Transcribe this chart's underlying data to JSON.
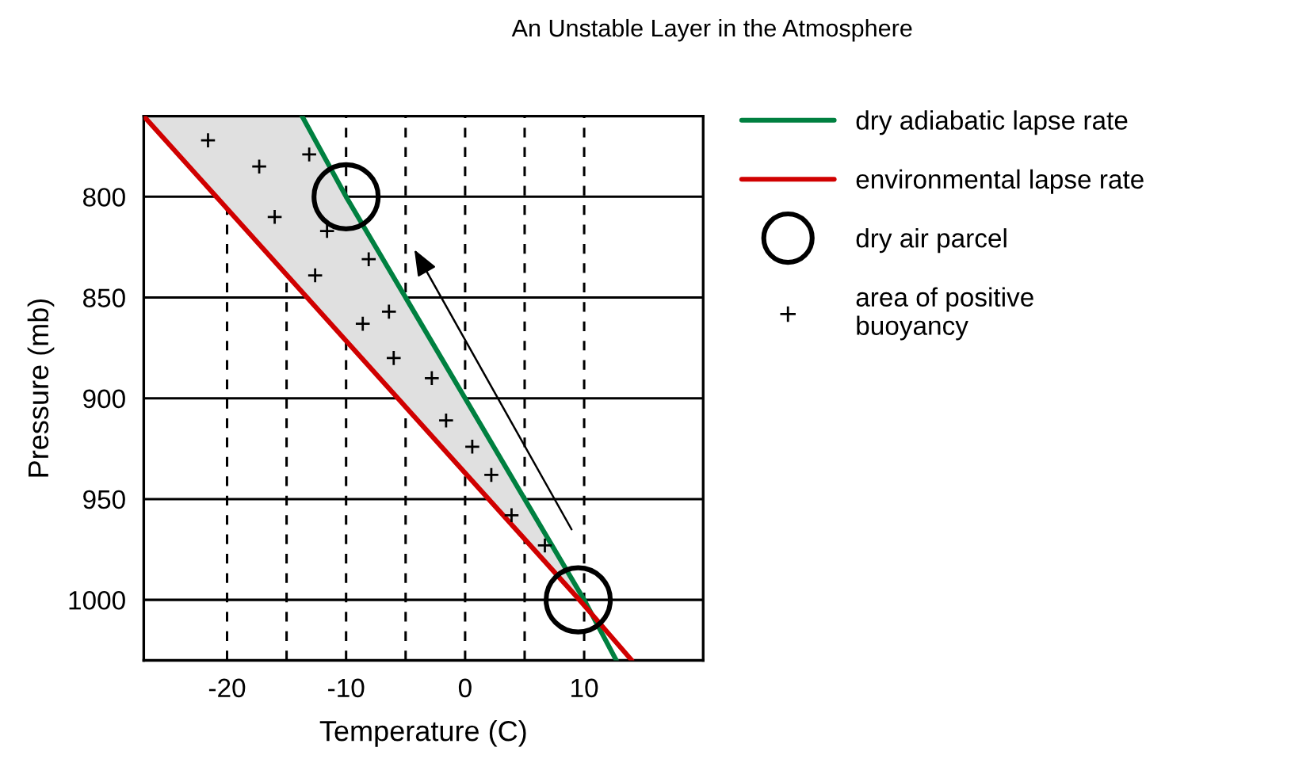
{
  "chart_data": {
    "type": "line",
    "title": "An Unstable Layer in the Atmosphere",
    "xlabel": "Temperature (C)",
    "ylabel": "Pressure (mb)",
    "xlim": [
      -27,
      20
    ],
    "ylim": [
      1030,
      760
    ],
    "xticks": [
      -20,
      {
        "value": -15,
        "label": null
      },
      -10,
      {
        "value": -5,
        "label": null
      },
      0,
      {
        "value": 5,
        "label": null
      },
      10
    ],
    "yticks": [
      800,
      850,
      900,
      950,
      1000
    ],
    "grid": true,
    "legend": "right",
    "series": [
      {
        "name": "dry adiabatic lapse rate",
        "color": "#008040",
        "x": [
          -13.7,
          -10,
          10,
          12.7
        ],
        "values": [
          760,
          800,
          1000,
          1030
        ]
      },
      {
        "name": "environmental lapse rate",
        "color": "#d00000",
        "x": [
          -27,
          -20.9,
          9.6,
          14
        ],
        "values": [
          760,
          800,
          1000,
          1030
        ]
      },
      {
        "name": "dry air parcel",
        "type": "scatter",
        "marker": "circle",
        "color": "#000000",
        "x": [
          -10,
          9.5
        ],
        "values": [
          800,
          1000
        ]
      },
      {
        "name": "area of positive\nbuoyancy",
        "type": "scatter",
        "marker": "cross",
        "color": "#000000",
        "x": [
          -21.6,
          -17.3,
          -13.1,
          -16.0,
          -11.6,
          -8.1,
          -12.6,
          -6.4,
          -8.6,
          -6.0,
          -2.8,
          -1.6,
          0.6,
          2.2,
          3.9,
          6.7
        ],
        "values": [
          772,
          785,
          779,
          810,
          817,
          831,
          839,
          857,
          863,
          880,
          890,
          911,
          924,
          938,
          958,
          973
        ]
      }
    ]
  }
}
